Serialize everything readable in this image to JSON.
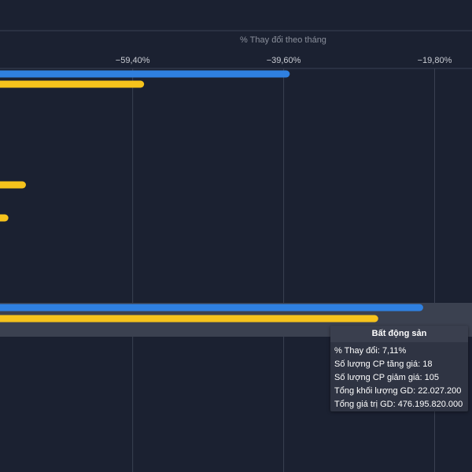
{
  "chart_data": {
    "type": "bar",
    "orientation": "horizontal",
    "xlabel": "% Thay đổi theo tháng",
    "x_ticks": [
      "−59,40%",
      "−39,60%",
      "−19,80%"
    ],
    "x_tick_values": [
      -59.4,
      -39.6,
      -19.8
    ],
    "x_range": [
      -76.8,
      -14.9
    ],
    "grid": true,
    "rows": [
      {
        "series_a": -38.8,
        "series_b": -57.9
      },
      {
        "series_a": null,
        "series_b": -73.4
      },
      {
        "series_a": null,
        "series_b": -75.7
      },
      {
        "series_a": -21.3,
        "series_b": -27.2,
        "highlighted": true
      }
    ],
    "series_colors": {
      "series_a": "#2f80e0",
      "series_b": "#f6c31c"
    }
  },
  "tooltip": {
    "title": "Bất động sản",
    "lines": [
      "% Thay đổi: 7,11%",
      "Số lượng CP tăng giá: 18",
      "Số lượng CP giảm giá: 105",
      "Tổng khối lượng GD: 22.027.200",
      "Tổng giá trị GD: 476.195.820.000"
    ]
  },
  "colors": {
    "background": "#1b2131",
    "grid": "#3a4152",
    "axis_text": "#c9ccd3",
    "axis_title": "#8a8f9b",
    "highlight_band": "#3b4150"
  }
}
